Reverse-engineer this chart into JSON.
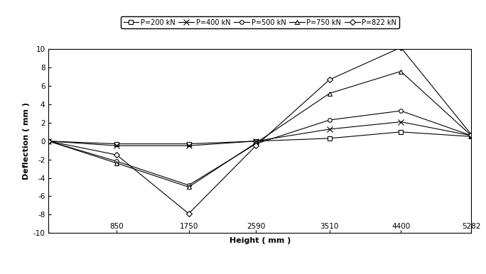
{
  "x_values": [
    0,
    850,
    1750,
    2590,
    3510,
    4400,
    5282
  ],
  "series": [
    {
      "label": "P=200 kN",
      "marker": "s",
      "y": [
        0,
        -0.3,
        -0.3,
        0.0,
        0.3,
        1.0,
        0.5
      ]
    },
    {
      "label": "P=400 kN",
      "marker": "x",
      "y": [
        0,
        -0.5,
        -0.5,
        0.0,
        1.3,
        2.1,
        0.6
      ]
    },
    {
      "label": "P=500 kN",
      "marker": "o",
      "y": [
        0,
        -2.2,
        -4.8,
        -0.3,
        2.3,
        3.3,
        0.6
      ]
    },
    {
      "label": "P=750 kN",
      "marker": "^",
      "y": [
        0,
        -2.4,
        -5.0,
        -0.2,
        5.2,
        7.6,
        0.6
      ]
    },
    {
      "label": "P=822 kN",
      "marker": "D",
      "y": [
        0,
        -1.5,
        -7.9,
        -0.5,
        6.7,
        10.2,
        0.7
      ]
    }
  ],
  "xlabel": "Height ( mm )",
  "ylabel": "Deflection ( mm )",
  "ylim": [
    -10,
    10
  ],
  "xlim": [
    0,
    5282
  ],
  "xticks": [
    0,
    850,
    1750,
    2590,
    3510,
    4400,
    5282
  ],
  "xtick_labels": [
    "",
    "850",
    "1750",
    "2590",
    "3510",
    "4400",
    "5282"
  ],
  "yticks": [
    -10,
    -8,
    -6,
    -4,
    -2,
    0,
    2,
    4,
    6,
    8,
    10
  ],
  "background_color": "#ffffff",
  "figsize": [
    6.84,
    3.86
  ],
  "dpi": 100
}
